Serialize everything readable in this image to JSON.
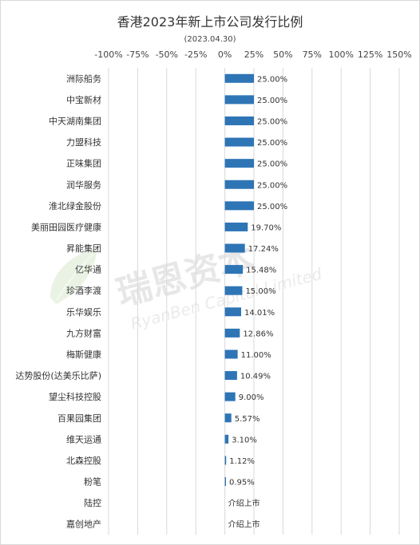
{
  "chart_data": {
    "type": "bar",
    "orientation": "horizontal",
    "title": "香港2023年新上市公司发行比例",
    "subtitle": "(2023.04.30)",
    "xlim": [
      -100,
      150
    ],
    "x_ticks": [
      "-100%",
      "-75%",
      "-50%",
      "-25%",
      "0%",
      "25%",
      "50%",
      "75%",
      "100%",
      "125%",
      "150%"
    ],
    "x_tick_values": [
      -100,
      -75,
      -50,
      -25,
      0,
      25,
      50,
      75,
      100,
      125,
      150
    ],
    "grid": true,
    "bar_color": "#2e75b6",
    "categories": [
      "洲际船务",
      "中宝新材",
      "中天湖南集团",
      "力盟科技",
      "正味集团",
      "润华服务",
      "淮北绿金股份",
      "美丽田园医疗健康",
      "昇能集团",
      "亿华通",
      "珍酒李渡",
      "乐华娱乐",
      "九方财富",
      "梅斯健康",
      "达势股份(达美乐比萨)",
      "望尘科技控股",
      "百果园集团",
      "维天运通",
      "北森控股",
      "粉笔",
      "陆控",
      "嘉创地产"
    ],
    "values": [
      25.0,
      25.0,
      25.0,
      25.0,
      25.0,
      25.0,
      25.0,
      19.7,
      17.24,
      15.48,
      15.0,
      14.01,
      12.86,
      11.0,
      10.49,
      9.0,
      5.57,
      3.1,
      1.12,
      0.95,
      null,
      null
    ],
    "data_labels": [
      "25.00%",
      "25.00%",
      "25.00%",
      "25.00%",
      "25.00%",
      "25.00%",
      "25.00%",
      "19.70%",
      "17.24%",
      "15.48%",
      "15.00%",
      "14.01%",
      "12.86%",
      "11.00%",
      "10.49%",
      "9.00%",
      "5.57%",
      "3.10%",
      "1.12%",
      "0.95%",
      "介绍上市",
      "介绍上市"
    ]
  },
  "watermark": {
    "text_cn": "瑞恩资本",
    "text_en": "RyanBen Capital Limited",
    "icon": "leaf-logo-icon"
  }
}
